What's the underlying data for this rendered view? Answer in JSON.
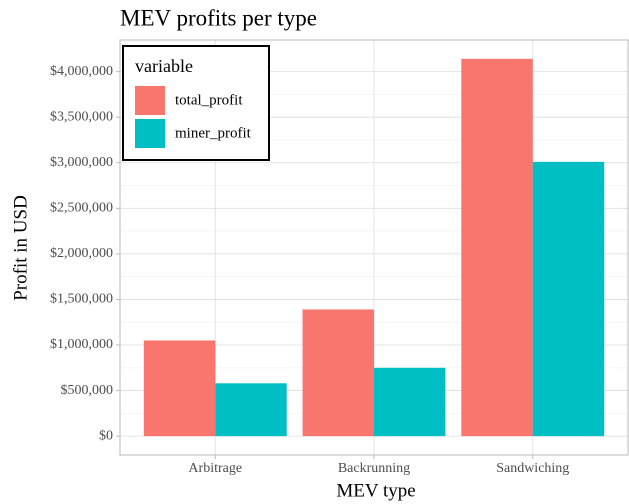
{
  "chart_data": {
    "type": "bar",
    "title": "MEV profits per type",
    "x_label": "MEV type",
    "y_label": "Profit in USD",
    "categories": [
      "Arbitrage",
      "Backrunning",
      "Sandwiching"
    ],
    "series": [
      {
        "name": "total_profit",
        "color": "#F8766D",
        "values": [
          1050000,
          1390000,
          4140000
        ]
      },
      {
        "name": "miner_profit",
        "color": "#00BFC4",
        "values": [
          580000,
          750000,
          3010000
        ]
      }
    ],
    "legend_title": "variable",
    "legend_position": "top-left",
    "ylim": [
      -207000,
      4347000
    ],
    "yticks": [
      {
        "value": 0,
        "label": "$0"
      },
      {
        "value": 500000,
        "label": "$500,000"
      },
      {
        "value": 1000000,
        "label": "$1,000,000"
      },
      {
        "value": 1500000,
        "label": "$1,500,000"
      },
      {
        "value": 2000000,
        "label": "$2,000,000"
      },
      {
        "value": 2500000,
        "label": "$2,500,000"
      },
      {
        "value": 3000000,
        "label": "$3,000,000"
      },
      {
        "value": 3500000,
        "label": "$3,500,000"
      },
      {
        "value": 4000000,
        "label": "$4,000,000"
      }
    ],
    "grid": true
  }
}
